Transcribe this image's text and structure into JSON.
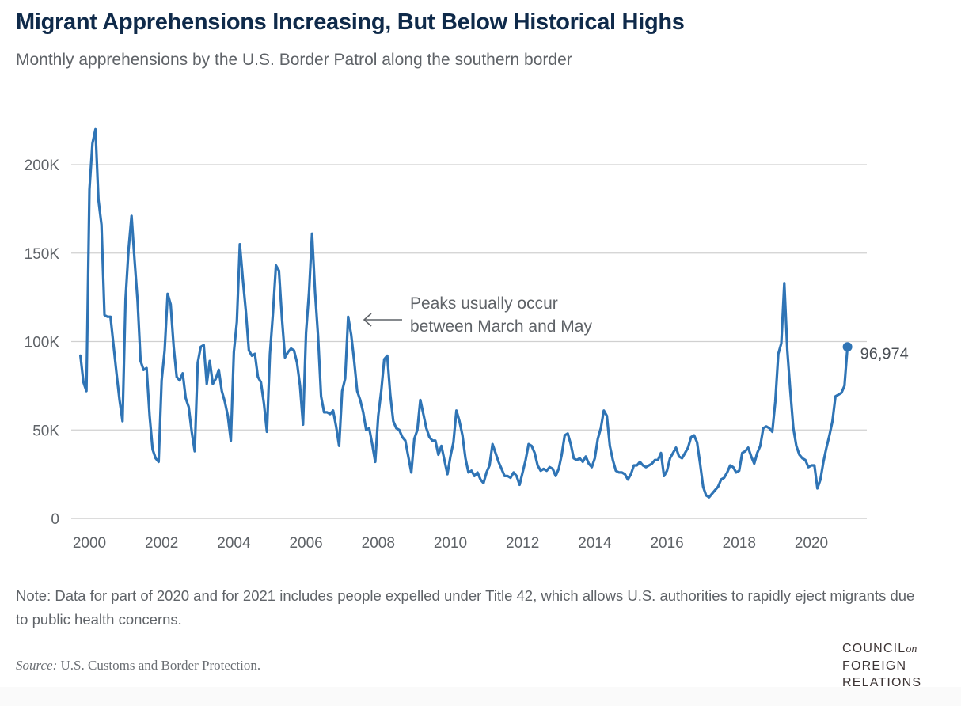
{
  "header": {
    "title": "Migrant Apprehensions Increasing, But Below Historical Highs",
    "subtitle": "Monthly apprehensions by the U.S. Border Patrol along the southern border"
  },
  "note": "Note: Data for part of 2020 and for 2021 includes people expelled under Title 42, which allows U.S. authorities to rapidly eject migrants due to public health concerns.",
  "source": {
    "label": "Source:",
    "text": "U.S. Customs and Border Protection."
  },
  "logo": {
    "line1": "COUNCIL",
    "line1_suffix": "on",
    "line2": "FOREIGN",
    "line3": "RELATIONS"
  },
  "colors": {
    "line": "#2f74b5",
    "grid": "#d0d0d0",
    "title": "#0f2a4a",
    "text": "#5f6368"
  },
  "chart_data": {
    "type": "line",
    "title": "Migrant Apprehensions Increasing, But Below Historical Highs",
    "subtitle": "Monthly apprehensions by the U.S. Border Patrol along the southern border",
    "xlabel": "",
    "ylabel": "",
    "x_start": "1999-10",
    "x_step": "month",
    "xlim": [
      1999.75,
      2021.2
    ],
    "ylim": [
      0,
      200000
    ],
    "grid": true,
    "legend": "none",
    "yticks": [
      0,
      50000,
      100000,
      150000,
      200000
    ],
    "ytick_labels": [
      "0",
      "50K",
      "100K",
      "150K",
      "200K"
    ],
    "xticks": [
      2000,
      2002,
      2004,
      2006,
      2008,
      2010,
      2012,
      2014,
      2016,
      2018,
      2020
    ],
    "xtick_labels": [
      "2000",
      "2002",
      "2004",
      "2006",
      "2008",
      "2010",
      "2012",
      "2014",
      "2016",
      "2018",
      "2020"
    ],
    "series": [
      {
        "name": "Monthly apprehensions",
        "values": [
          92000,
          77000,
          72000,
          186000,
          212000,
          220000,
          180000,
          166000,
          115000,
          114000,
          114000,
          98000,
          82000,
          67000,
          55000,
          124000,
          152000,
          171000,
          146000,
          123000,
          89000,
          84000,
          85000,
          58000,
          39000,
          34000,
          32000,
          78000,
          95000,
          127000,
          121000,
          97000,
          80000,
          78000,
          82000,
          68000,
          63000,
          49000,
          38000,
          88000,
          97000,
          98000,
          76000,
          89000,
          76000,
          79000,
          84000,
          72000,
          66000,
          58000,
          44000,
          94000,
          111000,
          155000,
          135000,
          117000,
          95000,
          92000,
          93000,
          80000,
          77000,
          65000,
          49000,
          93000,
          116000,
          143000,
          140000,
          113000,
          91000,
          94000,
          96000,
          95000,
          88000,
          75000,
          53000,
          105000,
          128000,
          161000,
          128000,
          103000,
          69000,
          60000,
          60000,
          59000,
          61000,
          52000,
          41000,
          72000,
          79000,
          114000,
          104000,
          89000,
          72000,
          67000,
          60000,
          50000,
          51000,
          42000,
          32000,
          58000,
          72000,
          90000,
          92000,
          70000,
          55000,
          51000,
          50000,
          46000,
          44000,
          35000,
          26000,
          45000,
          50000,
          67000,
          59000,
          51000,
          46000,
          44000,
          44000,
          36000,
          41000,
          33000,
          25000,
          35000,
          43000,
          61000,
          55000,
          47000,
          34000,
          26000,
          27000,
          24000,
          26000,
          22000,
          20000,
          26000,
          30000,
          42000,
          37000,
          32000,
          28000,
          24000,
          24000,
          23000,
          26000,
          24000,
          19000,
          26000,
          33000,
          42000,
          41000,
          37000,
          30000,
          27000,
          28000,
          27000,
          29000,
          28000,
          24000,
          28000,
          36000,
          47000,
          48000,
          42000,
          34000,
          33000,
          34000,
          32000,
          35000,
          31000,
          29000,
          34000,
          45000,
          51000,
          61000,
          58000,
          41000,
          33000,
          27000,
          26000,
          26000,
          25000,
          22000,
          25000,
          30000,
          30000,
          32000,
          30000,
          29000,
          30000,
          31000,
          33000,
          33000,
          37000,
          24000,
          27000,
          34000,
          37000,
          40000,
          35000,
          34000,
          37000,
          40000,
          46000,
          47000,
          43000,
          31000,
          18000,
          13000,
          12000,
          14000,
          16000,
          18000,
          22000,
          23000,
          26000,
          30000,
          29000,
          26000,
          27000,
          37000,
          38000,
          40000,
          35000,
          31000,
          37000,
          41000,
          51000,
          52000,
          51000,
          49000,
          66000,
          93000,
          99000,
          133000,
          95000,
          72000,
          51000,
          41000,
          36000,
          34000,
          33000,
          29000,
          30000,
          30000,
          17000,
          22000,
          32000,
          40000,
          47000,
          55000,
          69000,
          70000,
          71000,
          75000,
          96974
        ]
      }
    ],
    "annotations": [
      {
        "text_lines": [
          "Peaks usually occur",
          "between March and May"
        ],
        "points_to": "2007 peak",
        "arrow": "left"
      },
      {
        "text": "96,974",
        "target": "last point"
      }
    ],
    "end_label": "96,974"
  }
}
